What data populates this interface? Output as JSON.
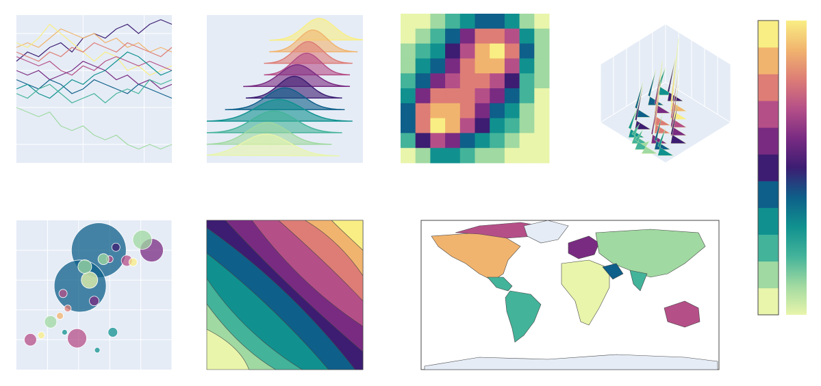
{
  "colorscale": [
    "#e8f5ab",
    "#a0d9a1",
    "#43b39a",
    "#10918f",
    "#0e5f89",
    "#3c1d72",
    "#792b82",
    "#b54f88",
    "#dd7d76",
    "#f1b46e",
    "#f9ee84"
  ],
  "chart_data": [
    {
      "type": "line",
      "xlim": [
        0,
        14
      ],
      "ylim": [
        -10,
        6
      ],
      "xticks": [
        6,
        11.5
      ],
      "yticks": [
        -8,
        -4,
        0,
        4
      ],
      "grid": true,
      "x": [
        0,
        1,
        2,
        3,
        4,
        5,
        6,
        7,
        8,
        9,
        10,
        11,
        12,
        13,
        14
      ],
      "series": [
        {
          "color": "#3c1d72",
          "values": [
            1,
            2,
            1.5,
            2.5,
            3,
            2,
            3.5,
            4,
            3.5,
            4.5,
            5,
            4,
            5,
            5.5,
            5
          ]
        },
        {
          "color": "#f1b46e",
          "values": [
            2.5,
            3,
            2.5,
            3.5,
            4.5,
            4,
            3.5,
            4,
            3,
            3.5,
            2.5,
            3,
            2,
            2.5,
            2
          ]
        },
        {
          "color": "#f9ee84",
          "values": [
            3,
            2.5,
            3.5,
            5,
            4,
            3,
            2,
            1,
            2,
            1.5,
            0,
            0.5,
            -0.5,
            0,
            0.5
          ]
        },
        {
          "color": "#dd7d76",
          "values": [
            2,
            1.5,
            1,
            2,
            1.5,
            2.5,
            2,
            3,
            2.5,
            2,
            3,
            2.5,
            2,
            1.5,
            2.5
          ]
        },
        {
          "color": "#b54f88",
          "values": [
            1.5,
            1,
            0.5,
            1,
            0,
            -0.5,
            0.5,
            0,
            1,
            1.5,
            1,
            0.5,
            1,
            0.5,
            0
          ]
        },
        {
          "color": "#792b82",
          "values": [
            0,
            -0.5,
            0,
            -1,
            -0.5,
            0,
            1,
            0.5,
            0,
            -1,
            -0.5,
            -1.5,
            -1,
            -2,
            -1.5
          ]
        },
        {
          "color": "#0e5f89",
          "values": [
            -1,
            -1.5,
            -2,
            -1,
            -1.5,
            -2.5,
            -2,
            -1,
            -1.5,
            -2,
            -2.5,
            -1.5,
            -2,
            -2.5,
            -3
          ]
        },
        {
          "color": "#10918f",
          "values": [
            -2,
            -1.5,
            -2.5,
            -3,
            -2,
            -1,
            -1.5,
            -0.5,
            0,
            1,
            2,
            1.5,
            0.5,
            -0.5,
            0
          ]
        },
        {
          "color": "#43b39a",
          "values": [
            -2.5,
            -3,
            -2,
            -1.5,
            -2.5,
            -3.5,
            -3,
            -2.5,
            -3.5,
            -2.5,
            -2,
            -2.5,
            -1,
            -1.5,
            -1
          ]
        },
        {
          "color": "#a0d9a1",
          "values": [
            -4,
            -4.5,
            -5,
            -4.5,
            -6,
            -6.5,
            -6,
            -7,
            -7.5,
            -7,
            -8,
            -8.5,
            -8,
            -8.5,
            -8
          ]
        }
      ]
    },
    {
      "type": "ridgeline",
      "xlim": [
        0,
        10
      ],
      "means": [
        3.8,
        3.9,
        4.3,
        4.6,
        5.0,
        5.6,
        5.8,
        6.4,
        6.5,
        6.8,
        7.2
      ],
      "sds": [
        1.5,
        1.3,
        1.4,
        1.5,
        1.2,
        1.0,
        1.1,
        0.9,
        0.9,
        0.9,
        1.0
      ]
    },
    {
      "type": "heatmap",
      "zlim": [
        0,
        10
      ],
      "z": [
        [
          0,
          0,
          1,
          2,
          3,
          4,
          4,
          3,
          1,
          0
        ],
        [
          0,
          1,
          2,
          4,
          6,
          8,
          8,
          7,
          3,
          1
        ],
        [
          1,
          2,
          3,
          5,
          7,
          9,
          10,
          8,
          4,
          1
        ],
        [
          1,
          3,
          4,
          6,
          8,
          9,
          9,
          7,
          3,
          1
        ],
        [
          2,
          4,
          6,
          7,
          8,
          8,
          7,
          5,
          2,
          1
        ],
        [
          3,
          6,
          8,
          8,
          8,
          7,
          6,
          4,
          2,
          0
        ],
        [
          4,
          8,
          9,
          9,
          8,
          6,
          4,
          3,
          1,
          0
        ],
        [
          4,
          8,
          10,
          9,
          7,
          5,
          3,
          2,
          1,
          0
        ],
        [
          2,
          5,
          7,
          6,
          4,
          3,
          2,
          1,
          0,
          0
        ],
        [
          0,
          1,
          3,
          3,
          2,
          1,
          1,
          0,
          0,
          0
        ]
      ]
    },
    {
      "type": "surface",
      "zlim": [
        0,
        10
      ],
      "x": [
        0.1,
        0.25,
        0.15,
        0.4,
        0.3,
        0.5,
        0.2,
        0.45,
        0.6,
        0.35,
        0.55,
        0.7,
        0.4,
        0.65,
        0.8,
        0.5,
        0.75,
        0.6,
        0.85,
        0.7
      ],
      "y": [
        0.1,
        0.1,
        0.3,
        0.2,
        0.35,
        0.3,
        0.55,
        0.5,
        0.4,
        0.7,
        0.6,
        0.5,
        0.85,
        0.75,
        0.6,
        0.9,
        0.8,
        0.95,
        0.85,
        0.95
      ],
      "z": [
        3,
        5,
        4,
        9,
        6,
        10,
        4,
        8,
        7,
        5,
        8,
        6,
        3,
        6,
        5,
        2,
        4,
        2,
        3,
        1
      ]
    },
    {
      "type": "scatter",
      "xlim": [
        0,
        10
      ],
      "ylim": [
        0,
        10
      ],
      "xticks": [
        2,
        4,
        6,
        8,
        10
      ],
      "yticks": [
        2,
        4,
        6,
        8
      ],
      "grid": true,
      "x": [
        5.3,
        4.1,
        8.7,
        8.1,
        3.9,
        0.9,
        6.2,
        2.2,
        4.7,
        4.4,
        5.0,
        3.0,
        3.3,
        3.1,
        6.0,
        7.1,
        7.5,
        5.6,
        1.6,
        6.4,
        5.2,
        2.8
      ],
      "y": [
        8.0,
        5.6,
        8.0,
        8.7,
        2.1,
        2.0,
        2.5,
        3.2,
        6.0,
        6.9,
        4.6,
        5.1,
        4.1,
        2.5,
        7.4,
        7.3,
        7.2,
        7.4,
        2.3,
        8.2,
        1.3,
        3.6
      ],
      "sizes": [
        40,
        38,
        17,
        14,
        14,
        9,
        7,
        9,
        12,
        10,
        7,
        6,
        5,
        4,
        5,
        8,
        6,
        8,
        5,
        6,
        4,
        5
      ],
      "colors": [
        "#0e5f89",
        "#0e5f89",
        "#792b82",
        "#a0d9a1",
        "#b54f88",
        "#b54f88",
        "#10918f",
        "#a0d9a1",
        "#e8f5ab",
        "#a0d9a1",
        "#792b82",
        "#b54f88",
        "#dd7d76",
        "#10918f",
        "#b54f88",
        "#b54f88",
        "#f9ee84",
        "#a0d9a1",
        "#f9ee84",
        "#3c1d72",
        "#10918f",
        "#f1b46e"
      ]
    },
    {
      "type": "contour",
      "levels": [
        0,
        1,
        2,
        3,
        4,
        5,
        6,
        7,
        8,
        9,
        10
      ]
    },
    {
      "type": "map"
    },
    {
      "type": "colorbar"
    }
  ]
}
